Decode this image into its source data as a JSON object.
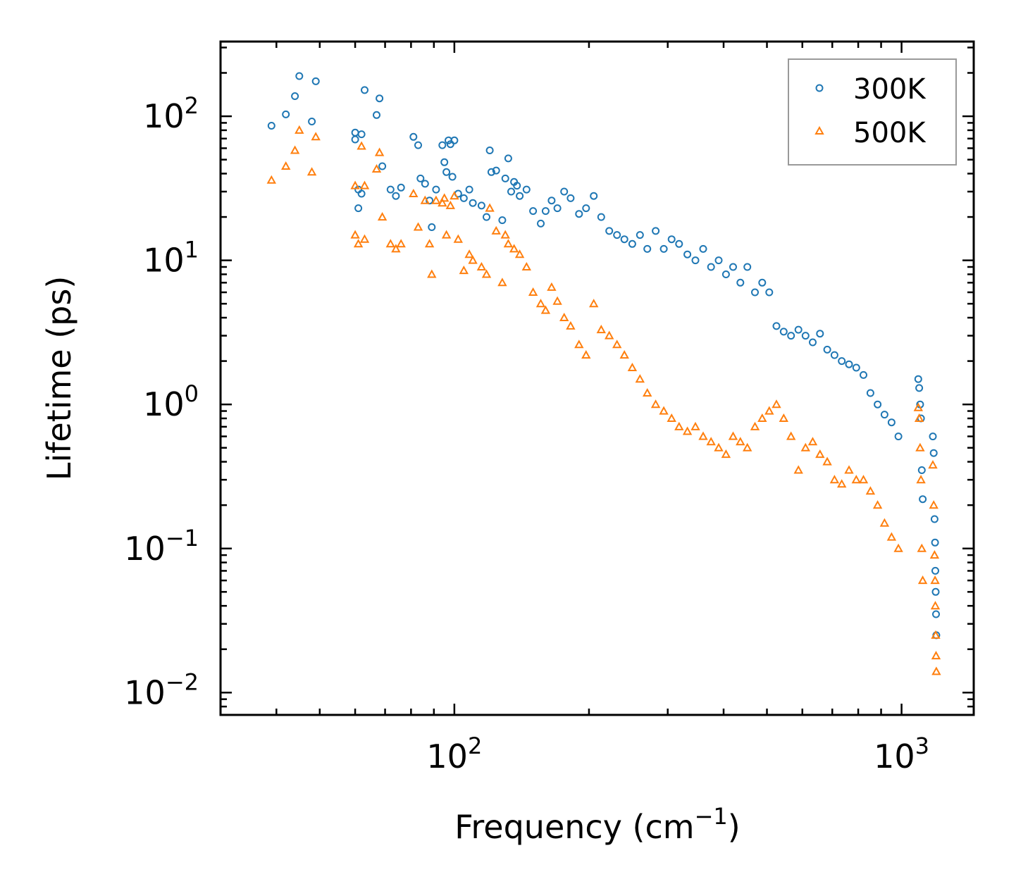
{
  "chart_data": {
    "type": "scatter",
    "title": "",
    "xlabel": "Frequency (cm",
    "xlabel_sup": "−1",
    "xlabel_suffix": ")",
    "ylabel": "Lifetime (ps)",
    "xscale": "log",
    "yscale": "log",
    "xlim": [
      30,
      1450
    ],
    "ylim": [
      0.007,
      330
    ],
    "xticks": [
      {
        "base": "10",
        "exp": "2",
        "value": 100
      },
      {
        "base": "10",
        "exp": "3",
        "value": 1000
      }
    ],
    "yticks": [
      {
        "base": "10",
        "exp": "2",
        "value": 100
      },
      {
        "base": "10",
        "exp": "1",
        "value": 10
      },
      {
        "base": "10",
        "exp": "0",
        "value": 1
      },
      {
        "base": "10",
        "exp": "−1",
        "value": 0.1
      },
      {
        "base": "10",
        "exp": "−2",
        "value": 0.01
      }
    ],
    "legend_position": "top-right",
    "series": [
      {
        "name": "300K",
        "marker": "circle-open",
        "color": "#1f77b4",
        "points": [
          [
            39,
            86
          ],
          [
            42,
            103
          ],
          [
            44,
            138
          ],
          [
            45,
            190
          ],
          [
            48,
            92
          ],
          [
            49,
            175
          ],
          [
            60,
            77
          ],
          [
            60,
            69
          ],
          [
            61,
            31
          ],
          [
            61,
            23
          ],
          [
            62,
            75
          ],
          [
            62,
            29
          ],
          [
            63,
            152
          ],
          [
            67,
            102
          ],
          [
            68,
            133
          ],
          [
            69,
            45
          ],
          [
            72,
            31
          ],
          [
            74,
            28
          ],
          [
            76,
            32
          ],
          [
            81,
            72
          ],
          [
            83,
            63
          ],
          [
            84,
            37
          ],
          [
            86,
            34
          ],
          [
            88,
            26
          ],
          [
            89,
            17
          ],
          [
            91,
            31
          ],
          [
            94,
            63
          ],
          [
            95,
            48
          ],
          [
            96,
            41
          ],
          [
            97,
            68
          ],
          [
            98,
            64
          ],
          [
            99,
            38
          ],
          [
            100,
            68
          ],
          [
            102,
            29
          ],
          [
            105,
            27
          ],
          [
            108,
            31
          ],
          [
            110,
            25
          ],
          [
            115,
            24
          ],
          [
            118,
            20
          ],
          [
            120,
            58
          ],
          [
            121,
            41
          ],
          [
            124,
            42
          ],
          [
            128,
            19
          ],
          [
            130,
            37
          ],
          [
            132,
            51
          ],
          [
            134,
            30
          ],
          [
            136,
            35
          ],
          [
            138,
            33
          ],
          [
            140,
            28
          ],
          [
            145,
            31
          ],
          [
            150,
            22
          ],
          [
            156,
            18
          ],
          [
            160,
            22
          ],
          [
            165,
            26
          ],
          [
            170,
            23
          ],
          [
            176,
            30
          ],
          [
            182,
            27
          ],
          [
            190,
            21
          ],
          [
            197,
            23
          ],
          [
            205,
            28
          ],
          [
            213,
            20
          ],
          [
            222,
            16
          ],
          [
            231,
            15
          ],
          [
            240,
            14
          ],
          [
            250,
            13
          ],
          [
            260,
            15
          ],
          [
            270,
            12
          ],
          [
            282,
            16
          ],
          [
            294,
            12
          ],
          [
            306,
            14
          ],
          [
            318,
            13
          ],
          [
            332,
            11
          ],
          [
            346,
            10
          ],
          [
            360,
            12
          ],
          [
            375,
            9
          ],
          [
            390,
            10
          ],
          [
            405,
            8
          ],
          [
            420,
            9
          ],
          [
            436,
            7
          ],
          [
            452,
            9
          ],
          [
            470,
            6
          ],
          [
            488,
            7
          ],
          [
            506,
            6
          ],
          [
            525,
            3.5
          ],
          [
            545,
            3.2
          ],
          [
            566,
            3.0
          ],
          [
            588,
            3.3
          ],
          [
            610,
            3.0
          ],
          [
            633,
            2.7
          ],
          [
            657,
            3.1
          ],
          [
            682,
            2.4
          ],
          [
            708,
            2.2
          ],
          [
            735,
            2.0
          ],
          [
            763,
            1.9
          ],
          [
            792,
            1.8
          ],
          [
            822,
            1.6
          ],
          [
            852,
            1.2
          ],
          [
            884,
            1.0
          ],
          [
            916,
            0.85
          ],
          [
            950,
            0.75
          ],
          [
            984,
            0.6
          ],
          [
            1090,
            1.5
          ],
          [
            1095,
            1.3
          ],
          [
            1100,
            1.0
          ],
          [
            1105,
            0.8
          ],
          [
            1110,
            0.35
          ],
          [
            1115,
            0.22
          ],
          [
            1175,
            0.6
          ],
          [
            1180,
            0.46
          ],
          [
            1185,
            0.16
          ],
          [
            1188,
            0.11
          ],
          [
            1190,
            0.07
          ],
          [
            1192,
            0.05
          ],
          [
            1194,
            0.035
          ],
          [
            1196,
            0.025
          ]
        ]
      },
      {
        "name": "500K",
        "marker": "triangle-open",
        "color": "#ff7f0e",
        "points": [
          [
            39,
            36
          ],
          [
            42,
            45
          ],
          [
            44,
            58
          ],
          [
            45,
            80
          ],
          [
            48,
            41
          ],
          [
            49,
            72
          ],
          [
            60,
            33
          ],
          [
            60,
            15
          ],
          [
            61,
            13
          ],
          [
            62,
            62
          ],
          [
            63,
            33
          ],
          [
            63,
            14
          ],
          [
            67,
            43
          ],
          [
            68,
            56
          ],
          [
            69,
            20
          ],
          [
            72,
            13
          ],
          [
            74,
            12
          ],
          [
            76,
            13
          ],
          [
            81,
            29
          ],
          [
            83,
            17
          ],
          [
            86,
            26
          ],
          [
            88,
            13
          ],
          [
            89,
            8
          ],
          [
            91,
            26
          ],
          [
            94,
            25
          ],
          [
            95,
            27
          ],
          [
            96,
            15
          ],
          [
            98,
            24
          ],
          [
            100,
            28
          ],
          [
            102,
            14
          ],
          [
            105,
            8.5
          ],
          [
            108,
            11
          ],
          [
            110,
            10
          ],
          [
            115,
            9
          ],
          [
            118,
            8
          ],
          [
            120,
            23
          ],
          [
            124,
            16
          ],
          [
            128,
            7
          ],
          [
            130,
            15
          ],
          [
            132,
            13
          ],
          [
            136,
            12
          ],
          [
            140,
            11
          ],
          [
            145,
            9
          ],
          [
            150,
            6
          ],
          [
            156,
            5
          ],
          [
            160,
            4.5
          ],
          [
            165,
            6.5
          ],
          [
            170,
            5.2
          ],
          [
            176,
            4.0
          ],
          [
            182,
            3.5
          ],
          [
            190,
            2.6
          ],
          [
            197,
            2.2
          ],
          [
            205,
            5.0
          ],
          [
            213,
            3.3
          ],
          [
            222,
            3.0
          ],
          [
            231,
            2.6
          ],
          [
            240,
            2.2
          ],
          [
            250,
            1.8
          ],
          [
            260,
            1.5
          ],
          [
            270,
            1.2
          ],
          [
            282,
            1.0
          ],
          [
            294,
            0.9
          ],
          [
            306,
            0.8
          ],
          [
            318,
            0.7
          ],
          [
            332,
            0.65
          ],
          [
            346,
            0.7
          ],
          [
            360,
            0.6
          ],
          [
            375,
            0.55
          ],
          [
            390,
            0.5
          ],
          [
            405,
            0.45
          ],
          [
            420,
            0.6
          ],
          [
            436,
            0.55
          ],
          [
            452,
            0.5
          ],
          [
            470,
            0.7
          ],
          [
            488,
            0.8
          ],
          [
            506,
            0.9
          ],
          [
            525,
            1.0
          ],
          [
            545,
            0.8
          ],
          [
            566,
            0.6
          ],
          [
            588,
            0.35
          ],
          [
            610,
            0.5
          ],
          [
            633,
            0.55
          ],
          [
            657,
            0.45
          ],
          [
            682,
            0.4
          ],
          [
            708,
            0.3
          ],
          [
            735,
            0.28
          ],
          [
            763,
            0.35
          ],
          [
            792,
            0.3
          ],
          [
            822,
            0.3
          ],
          [
            852,
            0.25
          ],
          [
            884,
            0.2
          ],
          [
            916,
            0.15
          ],
          [
            950,
            0.12
          ],
          [
            984,
            0.1
          ],
          [
            1090,
            0.95
          ],
          [
            1095,
            0.8
          ],
          [
            1100,
            0.5
          ],
          [
            1105,
            0.3
          ],
          [
            1110,
            0.1
          ],
          [
            1115,
            0.06
          ],
          [
            1175,
            0.38
          ],
          [
            1180,
            0.2
          ],
          [
            1185,
            0.09
          ],
          [
            1188,
            0.06
          ],
          [
            1190,
            0.04
          ],
          [
            1192,
            0.025
          ],
          [
            1194,
            0.018
          ],
          [
            1196,
            0.014
          ]
        ]
      }
    ]
  }
}
